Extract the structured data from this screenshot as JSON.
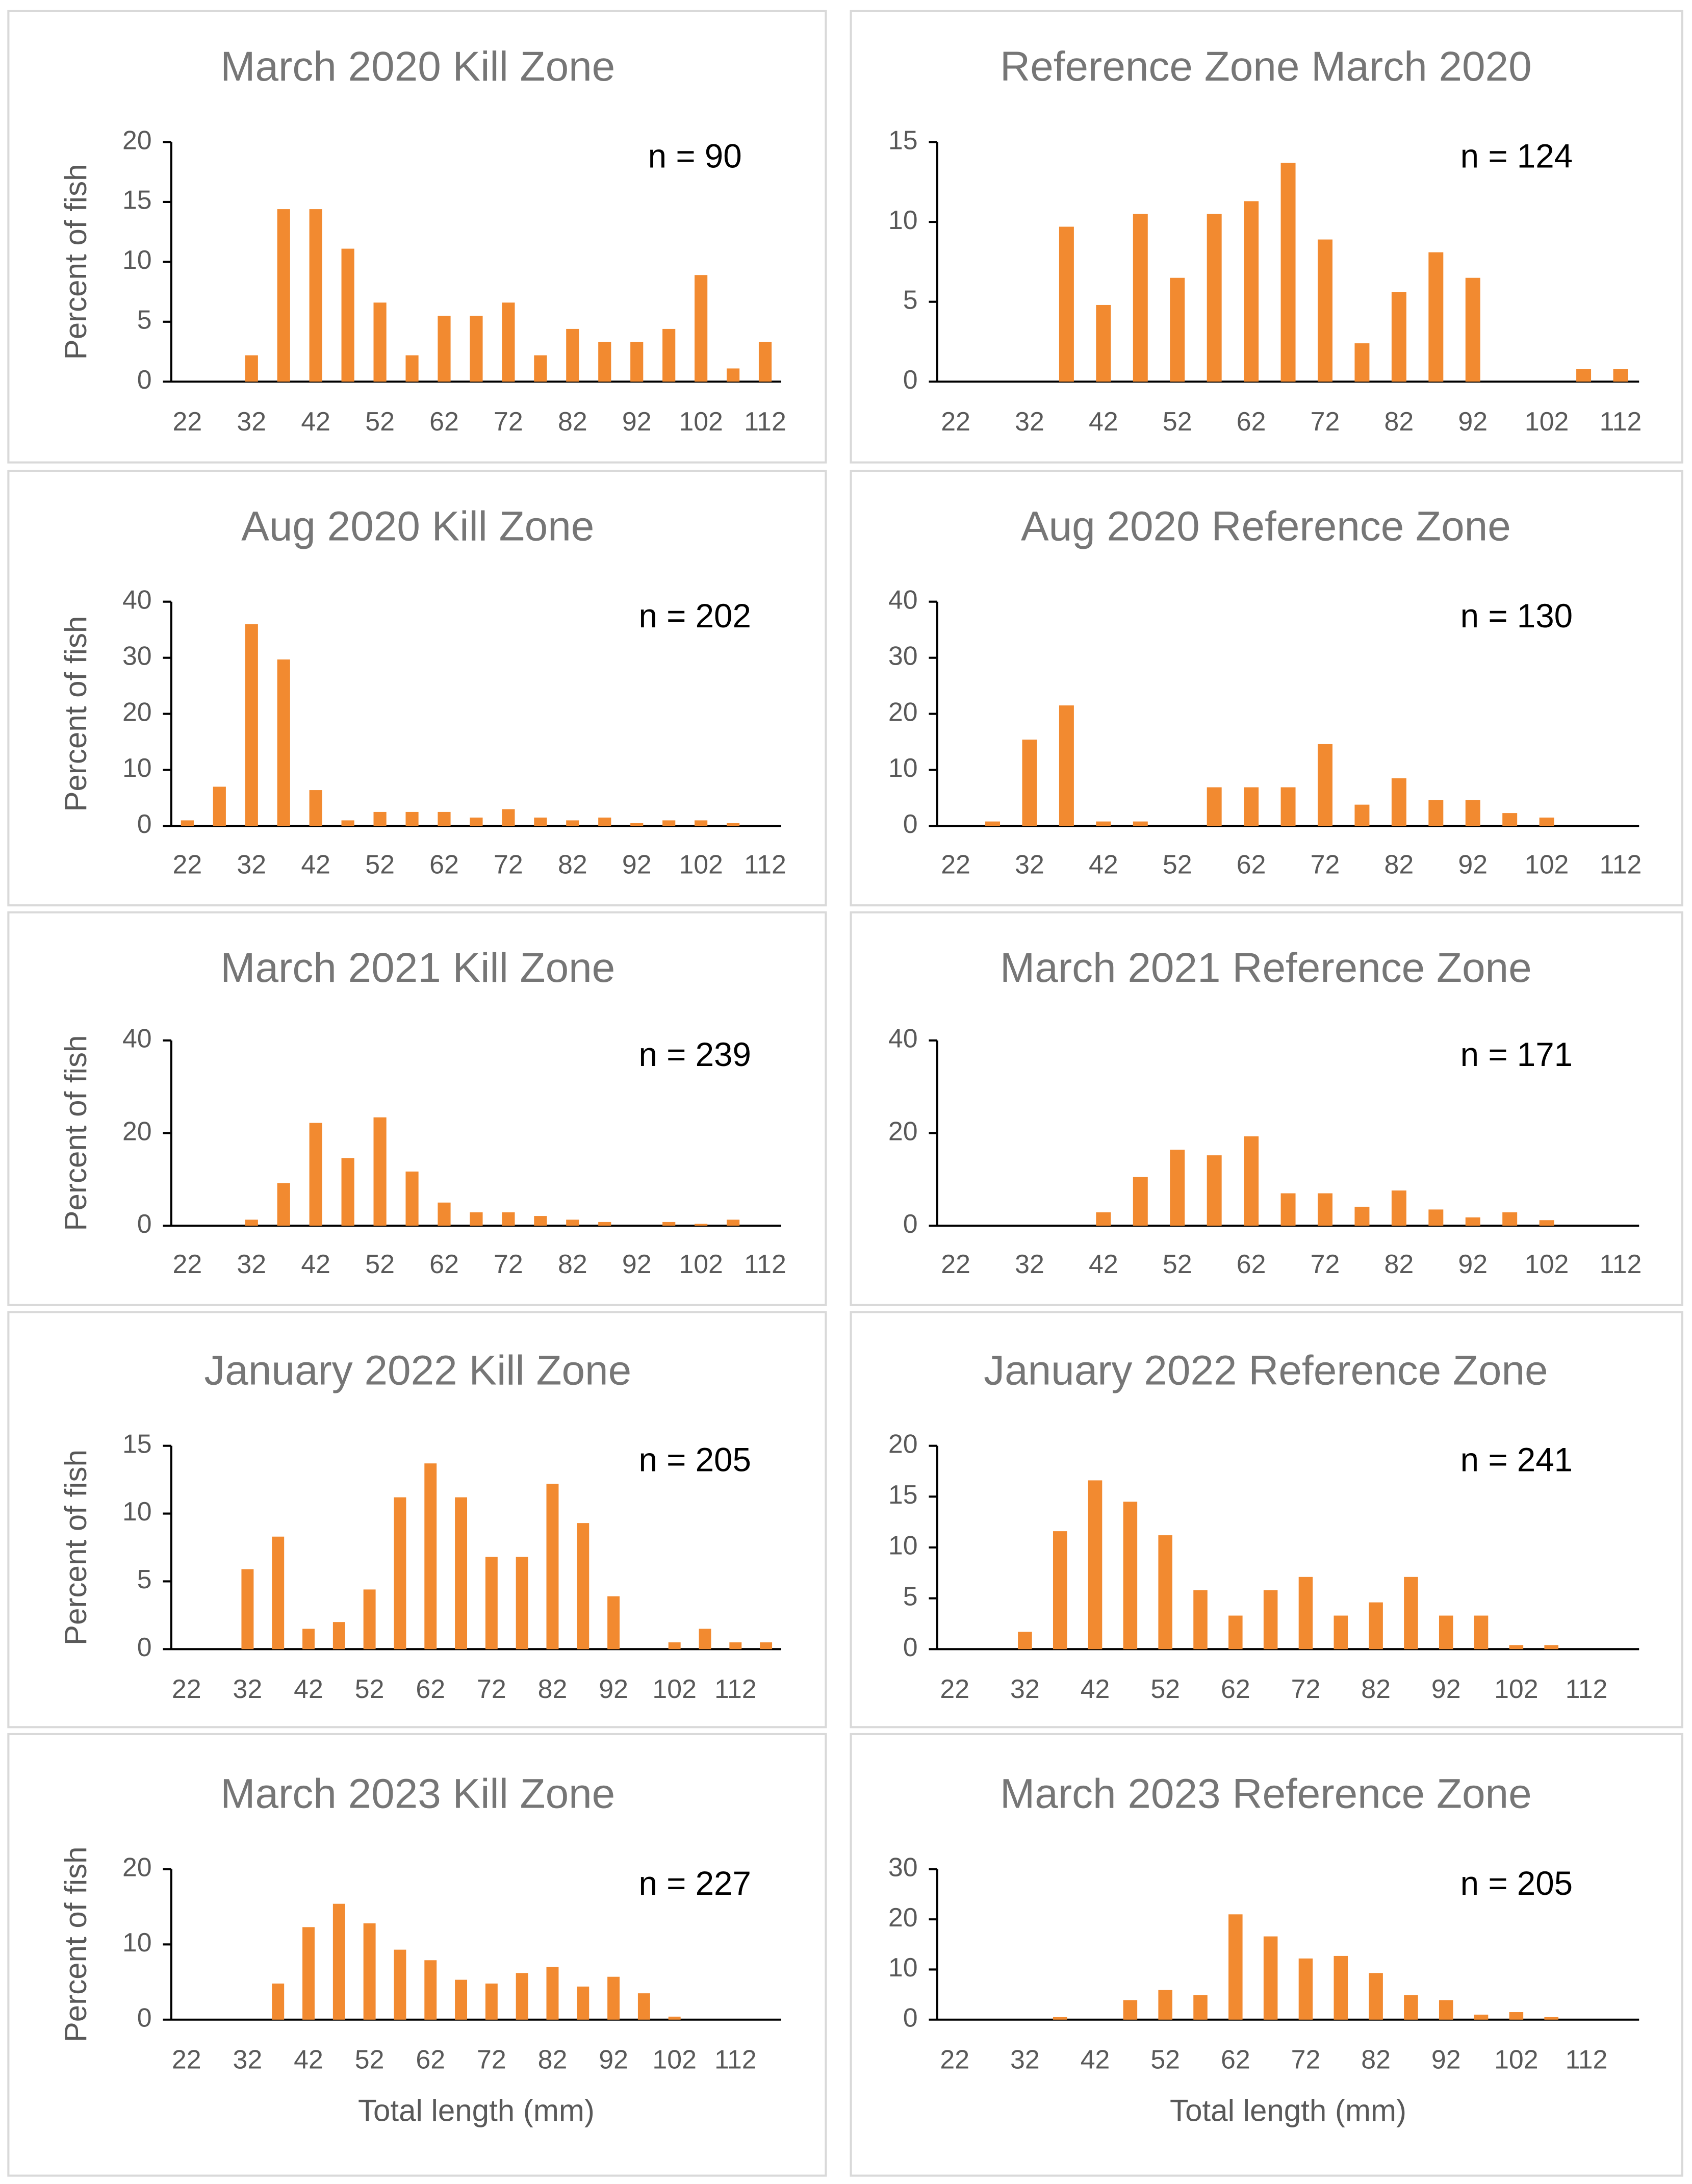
{
  "chart_data": [
    {
      "type": "bar",
      "title": "March 2020 Kill Zone",
      "annotation": "n = 90",
      "ylabel": "Percent of fish",
      "color": "#f28a30",
      "categories": [
        "22",
        null,
        "32",
        null,
        "42",
        null,
        "52",
        null,
        "62",
        null,
        "72",
        null,
        "82",
        null,
        "92",
        null,
        "102",
        null,
        "112"
      ],
      "values": [
        0,
        0,
        2.2,
        14.4,
        14.4,
        11.1,
        6.6,
        2.2,
        5.5,
        5.5,
        6.6,
        2.2,
        4.4,
        3.3,
        3.3,
        4.4,
        8.9,
        1.1,
        3.3
      ],
      "ylim": [
        0,
        20
      ],
      "yticks": [
        0,
        5,
        10,
        15,
        20
      ]
    },
    {
      "type": "bar",
      "title": "Reference Zone March 2020",
      "annotation": "n = 124",
      "color": "#f28a30",
      "categories": [
        "22",
        null,
        "32",
        null,
        "42",
        null,
        "52",
        null,
        "62",
        null,
        "72",
        null,
        "82",
        null,
        "92",
        null,
        "102",
        null,
        "112"
      ],
      "values": [
        0,
        0,
        0,
        9.7,
        4.8,
        10.5,
        6.5,
        10.5,
        11.3,
        13.7,
        8.9,
        2.4,
        5.6,
        8.1,
        6.5,
        0,
        0,
        0.8,
        0.8
      ],
      "ylim": [
        0,
        15
      ],
      "yticks": [
        0,
        5,
        10,
        15
      ]
    },
    {
      "type": "bar",
      "title": "Aug 2020 Kill Zone",
      "annotation": "n = 202",
      "ylabel": "Percent of fish",
      "color": "#f28a30",
      "categories": [
        "22",
        null,
        "32",
        null,
        "42",
        null,
        "52",
        null,
        "62",
        null,
        "72",
        null,
        "82",
        null,
        "92",
        null,
        "102",
        null,
        "112"
      ],
      "values": [
        1,
        7,
        36,
        29.7,
        6.4,
        1,
        2.5,
        2.5,
        2.5,
        1.5,
        3,
        1.5,
        1,
        1.5,
        0.5,
        1,
        1,
        0.5,
        0
      ],
      "ylim": [
        0,
        40
      ],
      "yticks": [
        0,
        10,
        20,
        30,
        40
      ]
    },
    {
      "type": "bar",
      "title": "Aug 2020 Reference Zone",
      "annotation": "n = 130",
      "color": "#f28a30",
      "categories": [
        "22",
        null,
        "32",
        null,
        "42",
        null,
        "52",
        null,
        "62",
        null,
        "72",
        null,
        "82",
        null,
        "92",
        null,
        "102",
        null,
        "112"
      ],
      "values": [
        0,
        0.8,
        15.4,
        21.5,
        0.8,
        0.8,
        0,
        6.9,
        6.9,
        6.9,
        14.6,
        3.8,
        8.5,
        4.6,
        4.6,
        2.3,
        1.5,
        0,
        0
      ],
      "ylim": [
        0,
        40
      ],
      "yticks": [
        0,
        10,
        20,
        30,
        40
      ]
    },
    {
      "type": "bar",
      "title": "March 2021 Kill Zone",
      "annotation": "n = 239",
      "ylabel": "Percent of fish",
      "color": "#f28a30",
      "categories": [
        "22",
        null,
        "32",
        null,
        "42",
        null,
        "52",
        null,
        "62",
        null,
        "72",
        null,
        "82",
        null,
        "92",
        null,
        "102",
        null,
        "112"
      ],
      "values": [
        0,
        0,
        1.3,
        9.2,
        22.2,
        14.6,
        23.4,
        11.7,
        5,
        2.9,
        2.9,
        2.1,
        1.3,
        0.8,
        0,
        0.8,
        0.4,
        1.3,
        0
      ],
      "ylim": [
        0,
        40
      ],
      "yticks": [
        0,
        20,
        40
      ]
    },
    {
      "type": "bar",
      "title": "March 2021 Reference Zone",
      "annotation": "n = 171",
      "color": "#f28a30",
      "categories": [
        "22",
        null,
        "32",
        null,
        "42",
        null,
        "52",
        null,
        "62",
        null,
        "72",
        null,
        "82",
        null,
        "92",
        null,
        "102",
        null,
        "112"
      ],
      "values": [
        0,
        0,
        0,
        0,
        2.9,
        10.5,
        16.4,
        15.2,
        19.3,
        7,
        7,
        4.1,
        7.6,
        3.5,
        1.8,
        2.9,
        1.2,
        0,
        0
      ],
      "ylim": [
        0,
        40
      ],
      "yticks": [
        0,
        20,
        40
      ]
    },
    {
      "type": "bar",
      "title": "January 2022 Kill Zone",
      "annotation": "n = 205",
      "ylabel": "Percent of fish",
      "color": "#f28a30",
      "categories": [
        "22",
        null,
        "32",
        null,
        "42",
        null,
        "52",
        null,
        "62",
        null,
        "72",
        null,
        "82",
        null,
        "92",
        null,
        "102",
        null,
        "112",
        null
      ],
      "values": [
        0,
        0,
        5.9,
        8.3,
        1.5,
        2,
        4.4,
        11.2,
        13.7,
        11.2,
        6.8,
        6.8,
        12.2,
        9.3,
        3.9,
        0,
        0.5,
        1.5,
        0.5,
        0.5
      ],
      "ylim": [
        0,
        15
      ],
      "yticks": [
        0,
        5,
        10,
        15
      ]
    },
    {
      "type": "bar",
      "title": "January 2022 Reference Zone",
      "annotation": "n = 241",
      "color": "#f28a30",
      "categories": [
        "22",
        null,
        "32",
        null,
        "42",
        null,
        "52",
        null,
        "62",
        null,
        "72",
        null,
        "82",
        null,
        "92",
        null,
        "102",
        null,
        "112",
        null
      ],
      "values": [
        0,
        0,
        1.7,
        11.6,
        16.6,
        14.5,
        11.2,
        5.8,
        3.3,
        5.8,
        7.1,
        3.3,
        4.6,
        7.1,
        3.3,
        3.3,
        0.4,
        0.4,
        0,
        0
      ],
      "ylim": [
        0,
        20
      ],
      "yticks": [
        0,
        5,
        10,
        15,
        20
      ]
    },
    {
      "type": "bar",
      "title": "March 2023 Kill Zone",
      "annotation": "n = 227",
      "ylabel": "Percent of fish",
      "xlabel": "Total length (mm)",
      "color": "#f28a30",
      "categories": [
        "22",
        null,
        "32",
        null,
        "42",
        null,
        "52",
        null,
        "62",
        null,
        "72",
        null,
        "82",
        null,
        "92",
        null,
        "102",
        null,
        "112",
        null
      ],
      "values": [
        0,
        0,
        0,
        4.8,
        12.3,
        15.4,
        12.8,
        9.3,
        7.9,
        5.3,
        4.8,
        6.2,
        7,
        4.4,
        5.7,
        3.5,
        0.4,
        0,
        0,
        0
      ],
      "ylim": [
        0,
        20
      ],
      "yticks": [
        0,
        10,
        20
      ]
    },
    {
      "type": "bar",
      "title": "March 2023 Reference Zone",
      "annotation": "n = 205",
      "xlabel": "Total length (mm)",
      "color": "#f28a30",
      "categories": [
        "22",
        null,
        "32",
        null,
        "42",
        null,
        "52",
        null,
        "62",
        null,
        "72",
        null,
        "82",
        null,
        "92",
        null,
        "102",
        null,
        "112",
        null
      ],
      "values": [
        0,
        0,
        0,
        0.5,
        0,
        3.9,
        5.9,
        4.9,
        21,
        16.6,
        12.2,
        12.7,
        9.3,
        4.9,
        3.9,
        1,
        1.5,
        0.5,
        0,
        0
      ],
      "ylim": [
        0,
        30
      ],
      "yticks": [
        0,
        10,
        20,
        30
      ]
    }
  ]
}
